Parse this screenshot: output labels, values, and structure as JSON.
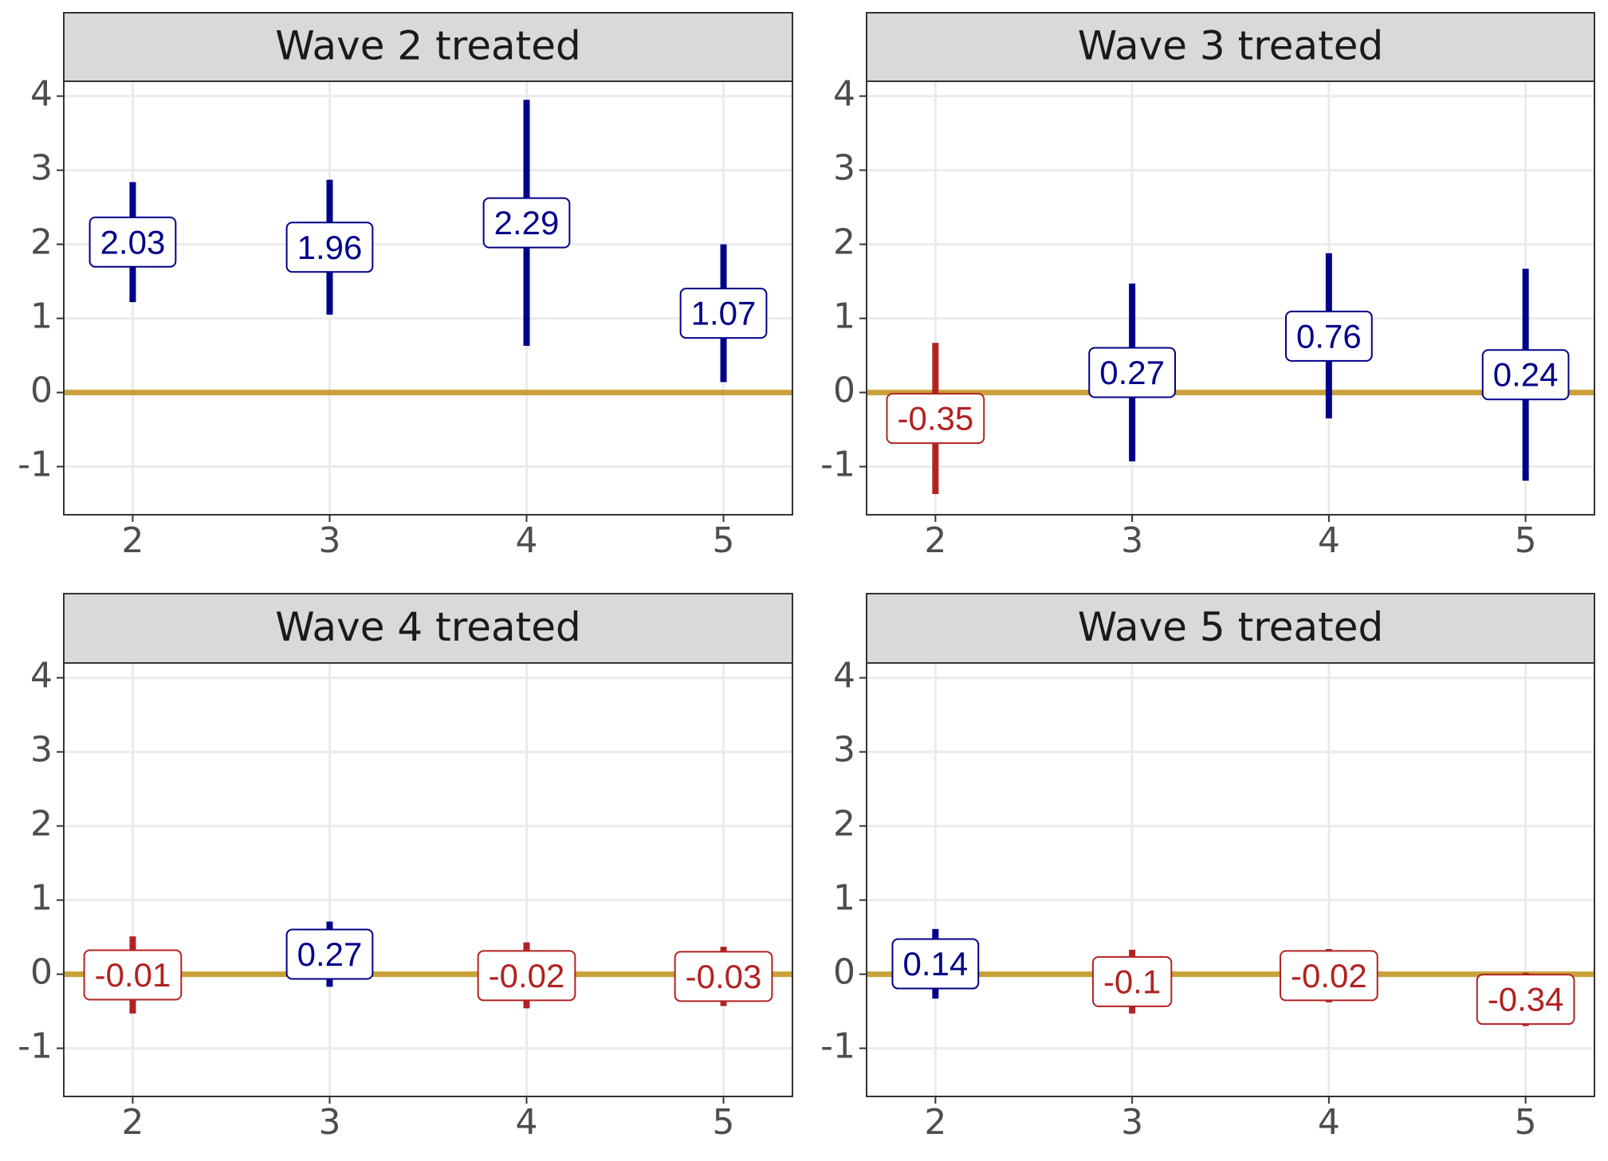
{
  "colors": {
    "positive": "#00008B",
    "negative": "#B22222",
    "zero_line": "#C9A13A",
    "strip_fill": "#D9D9D9",
    "grid": "#EBEBEB",
    "panel_border": "#333333"
  },
  "chart_data": [
    {
      "type": "errorbar",
      "title": "Wave 2 treated",
      "x": [
        2,
        3,
        4,
        5
      ],
      "xlim": [
        1.65,
        5.35
      ],
      "ylim": [
        -1.65,
        4.2
      ],
      "y_ticks": [
        -1,
        0,
        1,
        2,
        3,
        4
      ],
      "estimates": [
        2.03,
        1.96,
        2.29,
        1.07
      ],
      "labels": [
        "2.03",
        "1.96",
        "2.29",
        "1.07"
      ],
      "lower": [
        1.22,
        1.05,
        0.63,
        0.14
      ],
      "upper": [
        2.84,
        2.87,
        3.95,
        2.0
      ]
    },
    {
      "type": "errorbar",
      "title": "Wave 3 treated",
      "x": [
        2,
        3,
        4,
        5
      ],
      "xlim": [
        1.65,
        5.35
      ],
      "ylim": [
        -1.65,
        4.2
      ],
      "y_ticks": [
        -1,
        0,
        1,
        2,
        3,
        4
      ],
      "estimates": [
        -0.35,
        0.27,
        0.76,
        0.24
      ],
      "labels": [
        "-0.35",
        "0.27",
        "0.76",
        "0.24"
      ],
      "lower": [
        -1.37,
        -0.93,
        -0.35,
        -1.19
      ],
      "upper": [
        0.67,
        1.47,
        1.88,
        1.67
      ]
    },
    {
      "type": "errorbar",
      "title": "Wave 4 treated",
      "x": [
        2,
        3,
        4,
        5
      ],
      "xlim": [
        1.65,
        5.35
      ],
      "ylim": [
        -1.65,
        4.2
      ],
      "y_ticks": [
        -1,
        0,
        1,
        2,
        3,
        4
      ],
      "estimates": [
        -0.01,
        0.27,
        -0.02,
        -0.03
      ],
      "labels": [
        "-0.01",
        "0.27",
        "-0.02",
        "-0.03"
      ],
      "lower": [
        -0.53,
        -0.17,
        -0.46,
        -0.43
      ],
      "upper": [
        0.51,
        0.71,
        0.43,
        0.37
      ]
    },
    {
      "type": "errorbar",
      "title": "Wave 5 treated",
      "x": [
        2,
        3,
        4,
        5
      ],
      "xlim": [
        1.65,
        5.35
      ],
      "ylim": [
        -1.65,
        4.2
      ],
      "y_ticks": [
        -1,
        0,
        1,
        2,
        3,
        4
      ],
      "estimates": [
        0.14,
        -0.1,
        -0.02,
        -0.34
      ],
      "labels": [
        "0.14",
        "-0.1",
        "-0.02",
        "-0.34"
      ],
      "lower": [
        -0.33,
        -0.53,
        -0.38,
        -0.7
      ],
      "upper": [
        0.61,
        0.33,
        0.34,
        0.02
      ]
    }
  ]
}
